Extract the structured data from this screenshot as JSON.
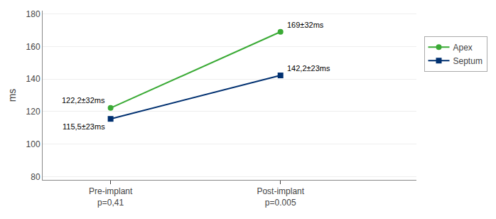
{
  "chart_data": {
    "type": "line",
    "categories": [
      "Pre-implant\np=0,41",
      "Post-implant\np=0.005"
    ],
    "series": [
      {
        "name": "Apex",
        "color": "#3aaa35",
        "marker": "circle",
        "values": [
          122.2,
          169.0
        ]
      },
      {
        "name": "Septum",
        "color": "#003070",
        "marker": "square",
        "values": [
          115.5,
          142.2
        ]
      }
    ],
    "annotations": [
      {
        "text": "122,2±32ms",
        "x": 0,
        "y": 122.2
      },
      {
        "text": "169±32ms",
        "x": 1,
        "y": 169.0
      },
      {
        "text": "115,5±23ms",
        "x": 0,
        "y": 115.5
      },
      {
        "text": "142,2±23ms",
        "x": 1,
        "y": 142.2
      }
    ],
    "ylabel": "ms",
    "ylim": [
      78,
      182
    ],
    "yticks": [
      80,
      100,
      120,
      140,
      160,
      180
    ],
    "grid": true,
    "legend": "right"
  }
}
